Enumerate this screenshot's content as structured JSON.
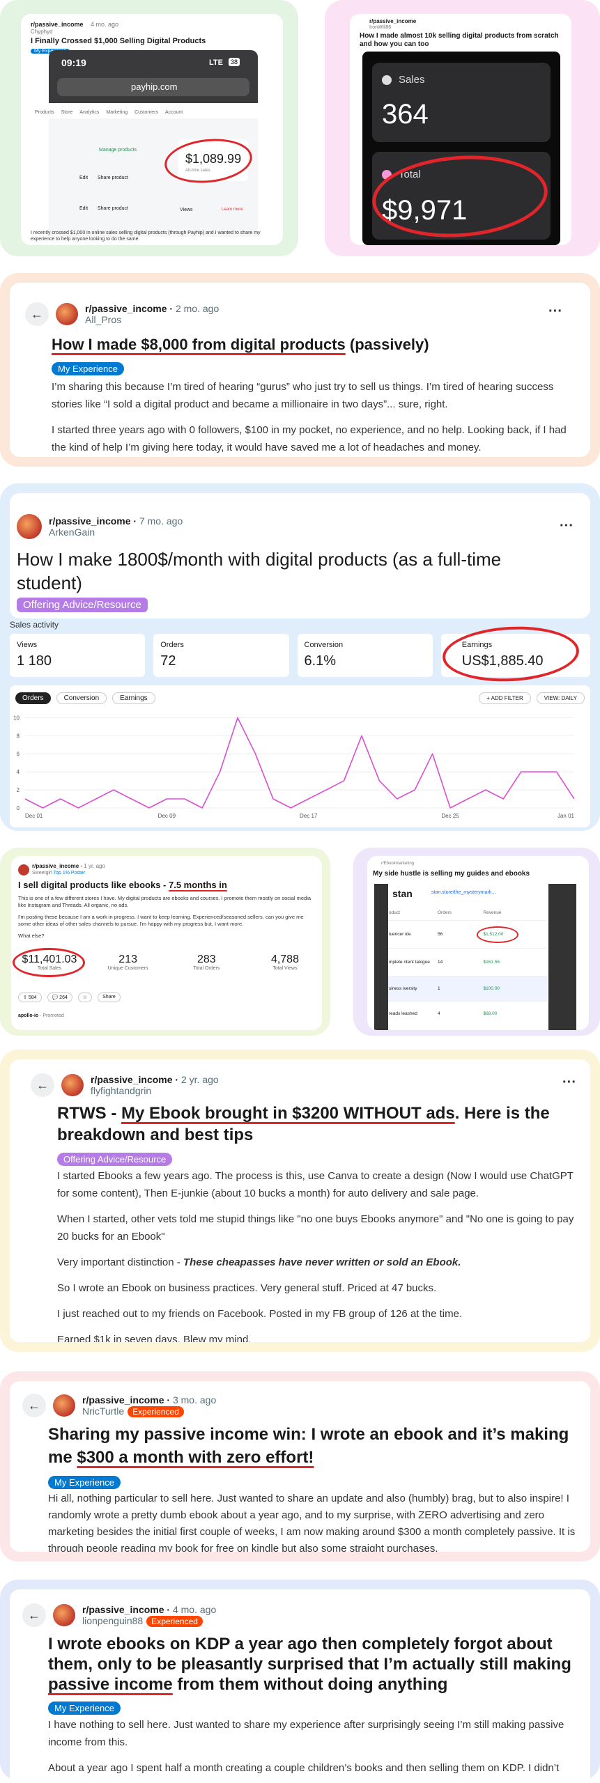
{
  "payhip": {
    "subreddit": "r/passive_income",
    "time": "4 mo. ago",
    "user": "Chyphyd",
    "title": "I Finally Crossed $1,000 Selling Digital Products",
    "flair": "My Experience",
    "clock": "09:19",
    "network": "LTE",
    "battery": "38",
    "url": "payhip.com",
    "tabs": [
      "Products",
      "Store",
      "Analytics",
      "Marketing",
      "Customers",
      "Account"
    ],
    "manage": "Manage products",
    "amount": "$1,089.99",
    "amount_sub": "All-time sales",
    "edit": "Edit",
    "share": "Share product",
    "views": "Views",
    "learn": "Learn more",
    "body": "I recently crossed $1,000 in online sales selling digital products (through Payhip) and I wanted to share my experience to help anyone looking to do the same."
  },
  "tenk": {
    "subreddit": "r/passive_income",
    "user": "IronWill86",
    "title": "How I made almost 10k selling digital products from scratch and how you can too",
    "sales_label": "Sales",
    "sales": "364",
    "total_label": "Total",
    "total": "$9,971"
  },
  "post8000": {
    "subreddit": "r/passive_income",
    "time": "2 mo. ago",
    "user": "All_Pros",
    "title_a": "How I made $8,000 from digital products",
    "title_b": " (passively)",
    "flair": "My Experience",
    "paragraphs": [
      "I’m sharing this because I’m tired of hearing “gurus” who just try to sell us things. I’m tired of hearing success stories like “I sold a digital product and became a millionaire in two days”... sure, right.",
      "I started three years ago with 0 followers, $100 in my pocket, no experience, and no help. Looking back, if I had the kind of help I’m giving here today, it would have saved me a lot of headaches and money."
    ]
  },
  "post1800": {
    "subreddit": "r/passive_income",
    "time": "7 mo. ago",
    "user": "ArkenGain",
    "title": "How I make 1800$/month with digital products (as a full-time student)",
    "flair": "Offering Advice/Resource",
    "activity": "Sales activity",
    "stats": [
      {
        "label": "Views",
        "value": "1 180"
      },
      {
        "label": "Orders",
        "value": "72"
      },
      {
        "label": "Conversion",
        "value": "6.1%"
      },
      {
        "label": "Earnings",
        "value": "US$1,885.40"
      }
    ],
    "tabs": [
      "Orders",
      "Conversion",
      "Earnings"
    ],
    "buttons": [
      "+ ADD FILTER",
      "VIEW: DAILY"
    ]
  },
  "chart_data": {
    "type": "line",
    "color": "#d94fd0",
    "categories": [
      "Dec 01",
      null,
      null,
      null,
      null,
      null,
      null,
      null,
      "Dec 09",
      null,
      null,
      null,
      null,
      null,
      null,
      null,
      "Dec 17",
      null,
      null,
      null,
      null,
      null,
      null,
      null,
      "Dec 25",
      null,
      null,
      null,
      null,
      null,
      null,
      "Jan 01"
    ],
    "values": [
      1,
      0,
      1,
      0,
      1,
      2,
      1,
      0,
      1,
      1,
      0,
      4,
      10,
      6,
      1,
      0,
      1,
      2,
      3,
      8,
      3,
      1,
      2,
      6,
      0,
      1,
      2,
      1,
      4,
      4,
      4,
      1
    ],
    "ylim": [
      0,
      10.5
    ],
    "yticks": [
      0,
      2,
      4,
      6,
      8,
      10
    ],
    "grid": true
  },
  "post7months": {
    "subreddit": "r/passive_income",
    "time": "1 yr. ago",
    "user": "Sweetgirl",
    "badge": "Top 1% Poster",
    "title_a": "I sell digital products like ebooks - ",
    "title_b": "7.5 months in",
    "paragraphs": [
      "This is one of a few different stores I have. My digital products are ebooks and courses. I promote them mostly on social media like Instagram and Threads. All organic, no ads.",
      "I'm posting these because I am a work in progress. I want to keep learning. Experienced/seasoned sellers, can you give me some other ideas of other sales channels to pursue. I'm happy with my progress but, I want more.",
      "What else?"
    ],
    "stats": [
      {
        "value": "$11,401.03",
        "label": "Total Sales"
      },
      {
        "value": "213",
        "label": "Unique Customers"
      },
      {
        "value": "283",
        "label": "Total Orders"
      },
      {
        "value": "4,788",
        "label": "Total Views"
      }
    ],
    "actions": [
      "584",
      "264",
      "Share"
    ],
    "promo": "apollo-io",
    "promoted": "Promoted"
  },
  "guides": {
    "subreddit": "r/Ebookmarketing",
    "title": "My side hustle is selling my guides and ebooks",
    "store": "stan",
    "link": "stan.store/the_mysterymark...",
    "headers": [
      "oduct",
      "Orders",
      "Revenue"
    ],
    "rows": [
      [
        "luencer ide",
        "56",
        "$1,512.00"
      ],
      [
        "mplete ntent talogue",
        "14",
        "$161.56"
      ],
      [
        "siness iversity",
        "1",
        "$100.00"
      ],
      [
        "reads leashed",
        "4",
        "$68.00"
      ]
    ]
  },
  "rtws": {
    "subreddit": "r/passive_income",
    "time": "2 yr. ago",
    "user": "flyfightandgrin",
    "title_a": "RTWS - ",
    "title_b": "My Ebook brought in $3200 WITHOUT ads",
    "title_c": ". Here is the breakdown and best tips",
    "flair": "Offering Advice/Resource",
    "p1": "I started Ebooks a few years ago. The process is this, use Canva to create a design (Now I would use ChatGPT for some content), Then E-junkie (about 10 bucks a month) for auto delivery and sale page.",
    "p2": "When I started, other vets told me stupid things like \"no one buys Ebooks anymore\" and \"No one is going to pay 20 bucks for an Ebook\"",
    "p3a": "Very important distinction - ",
    "p3b": "These cheapasses have never written or sold an Ebook.",
    "p4": "So I wrote an Ebook on business practices. Very general stuff. Priced at 47 bucks.",
    "p5": "I just reached out to my friends on Facebook. Posted in my FB group of 126 at the time.",
    "p6": "Earned $1k in seven days. Blew my mind."
  },
  "share300": {
    "subreddit": "r/passive_income",
    "time": "3 mo. ago",
    "user": "NricTurtle",
    "user_flair": "Experienced",
    "title_a": "Sharing my passive income win: I wrote an ebook and it’s making me ",
    "title_b": "$300 a month with zero effort!",
    "flair": "My Experience",
    "body": "Hi all, nothing particular to sell here. Just wanted to share an update and also (humbly) brag, but to also inspire! I randomly wrote a pretty dumb ebook about a year ago, and to my surprise, with ZERO advertising and zero marketing besides the initial first couple of weeks, I am now making around $300 a month completely passive. It is through people reading my book for free on kindle but also some straight purchases."
  },
  "kdp": {
    "subreddit": "r/passive_income",
    "time": "4 mo. ago",
    "user": "lionpenguin88",
    "user_flair": "Experienced",
    "title_a": "I wrote ebooks on KDP a year ago then completely forgot about them, only to be pleasantly surprised that I’m actually still making ",
    "title_b": "passive income",
    "title_c": " from them without doing anything",
    "flair": "My Experience",
    "paragraphs": [
      "I have nothing to sell here. Just wanted to share my experience after surprisingly seeing I’m still making passive income from this.",
      "About a year ago I spent half a month creating a couple children’s books and then selling them on KDP. I didn’t"
    ]
  }
}
